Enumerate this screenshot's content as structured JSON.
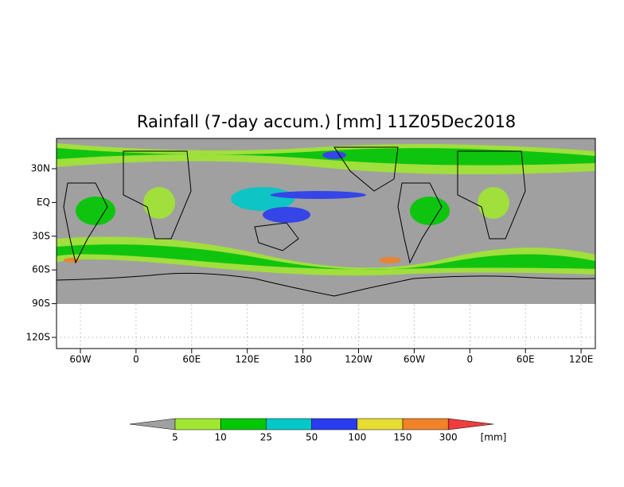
{
  "title": "Rainfall (7-day accum.) [mm] 11Z05Dec2018",
  "lat_labels": [
    "30N",
    "EQ",
    "30S",
    "60S",
    "90S",
    "120S"
  ],
  "lon_labels": [
    "60W",
    "0",
    "60E",
    "120E",
    "180",
    "120W",
    "60W",
    "0",
    "60E",
    "120E"
  ],
  "colorbar": {
    "labels": [
      "5",
      "10",
      "25",
      "50",
      "100",
      "150",
      "300"
    ],
    "unit": "[mm]",
    "colors": [
      "#a0a0a0",
      "#a0e632",
      "#00c800",
      "#00c8c8",
      "#2a3cf0",
      "#e6dc32",
      "#f08228",
      "#f03c3c"
    ]
  }
}
